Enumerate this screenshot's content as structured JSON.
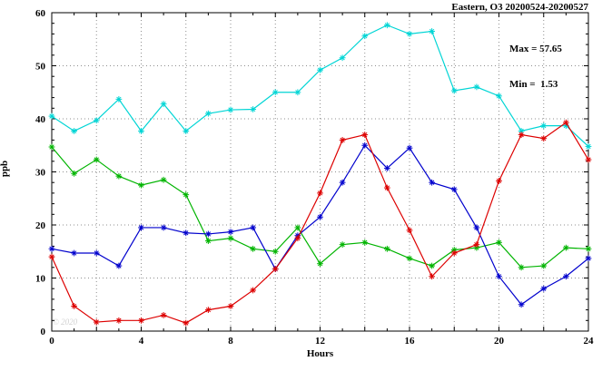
{
  "chart_data": {
    "type": "line",
    "title": "Eastern, O3 20200524-20200527",
    "xlabel": "Hours",
    "ylabel": "ppb",
    "xlim": [
      0,
      24
    ],
    "ylim": [
      0,
      60
    ],
    "x_tick_label_step": 4,
    "x_grid_step": 2,
    "y_tick_label_step": 10,
    "grid": "dotted",
    "legend_position": "none",
    "max": 57.65,
    "min": 1.53,
    "annotations": [
      "Max = 57.65",
      "Min =  1.53"
    ],
    "watermark": "© 2020",
    "x": [
      0,
      1,
      2,
      3,
      4,
      5,
      6,
      7,
      8,
      9,
      10,
      11,
      12,
      13,
      14,
      15,
      16,
      17,
      18,
      19,
      20,
      21,
      22,
      23,
      24
    ],
    "series": [
      {
        "name": "series-cyan",
        "color": "#00d5d5",
        "values": [
          40.5,
          37.7,
          39.7,
          43.7,
          37.7,
          42.8,
          37.7,
          41.0,
          41.7,
          41.8,
          45.0,
          45.0,
          49.2,
          51.5,
          55.6,
          57.65,
          56.0,
          56.5,
          45.3,
          46.0,
          44.3,
          37.7,
          38.7,
          38.7,
          34.8
        ]
      },
      {
        "name": "series-green",
        "color": "#00b400",
        "values": [
          34.7,
          29.7,
          32.3,
          29.2,
          27.5,
          28.5,
          25.7,
          17.0,
          17.5,
          15.5,
          15.0,
          19.5,
          12.7,
          16.3,
          16.7,
          15.5,
          13.7,
          12.3,
          15.3,
          15.7,
          16.7,
          12.0,
          12.3,
          15.7,
          15.5
        ]
      },
      {
        "name": "series-blue",
        "color": "#0000cd",
        "values": [
          15.5,
          14.7,
          14.7,
          12.3,
          19.5,
          19.5,
          18.5,
          18.3,
          18.7,
          19.5,
          11.7,
          18.0,
          21.5,
          28.0,
          35.0,
          30.7,
          34.5,
          28.0,
          26.7,
          19.5,
          10.3,
          5.0,
          8.0,
          10.3,
          13.7
        ]
      },
      {
        "name": "series-red",
        "color": "#dd0000",
        "values": [
          14.0,
          4.7,
          1.7,
          2.0,
          2.0,
          3.0,
          1.53,
          4.0,
          4.7,
          7.7,
          11.7,
          17.5,
          26.0,
          36.0,
          37.0,
          27.0,
          19.0,
          10.3,
          14.7,
          16.3,
          28.3,
          37.0,
          36.3,
          39.3,
          32.3
        ]
      }
    ]
  }
}
